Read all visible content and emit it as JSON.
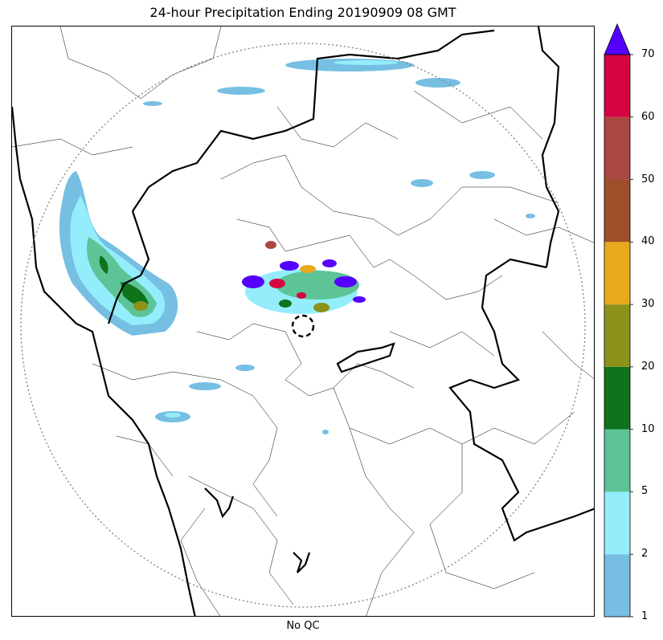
{
  "title": "24-hour Precipitation Ending 20190909 08 GMT",
  "xlabel": "No QC",
  "colorbar": {
    "ticks": [
      "1",
      "2",
      "5",
      "10",
      "20",
      "30",
      "40",
      "50",
      "60",
      "70"
    ],
    "colors": [
      "#76bfe3",
      "#94edfb",
      "#5cc497",
      "#0e731b",
      "#8c921a",
      "#e8a91c",
      "#9c4f28",
      "#a94841",
      "#d60443"
    ],
    "extend_max_color": "#5500ff",
    "extend": "max"
  },
  "map": {
    "radar_range_ring": "dotted",
    "radar_site_marker": "dashed-circle",
    "boundaries": [
      "national-border",
      "state-boundaries",
      "district-boundaries"
    ]
  }
}
